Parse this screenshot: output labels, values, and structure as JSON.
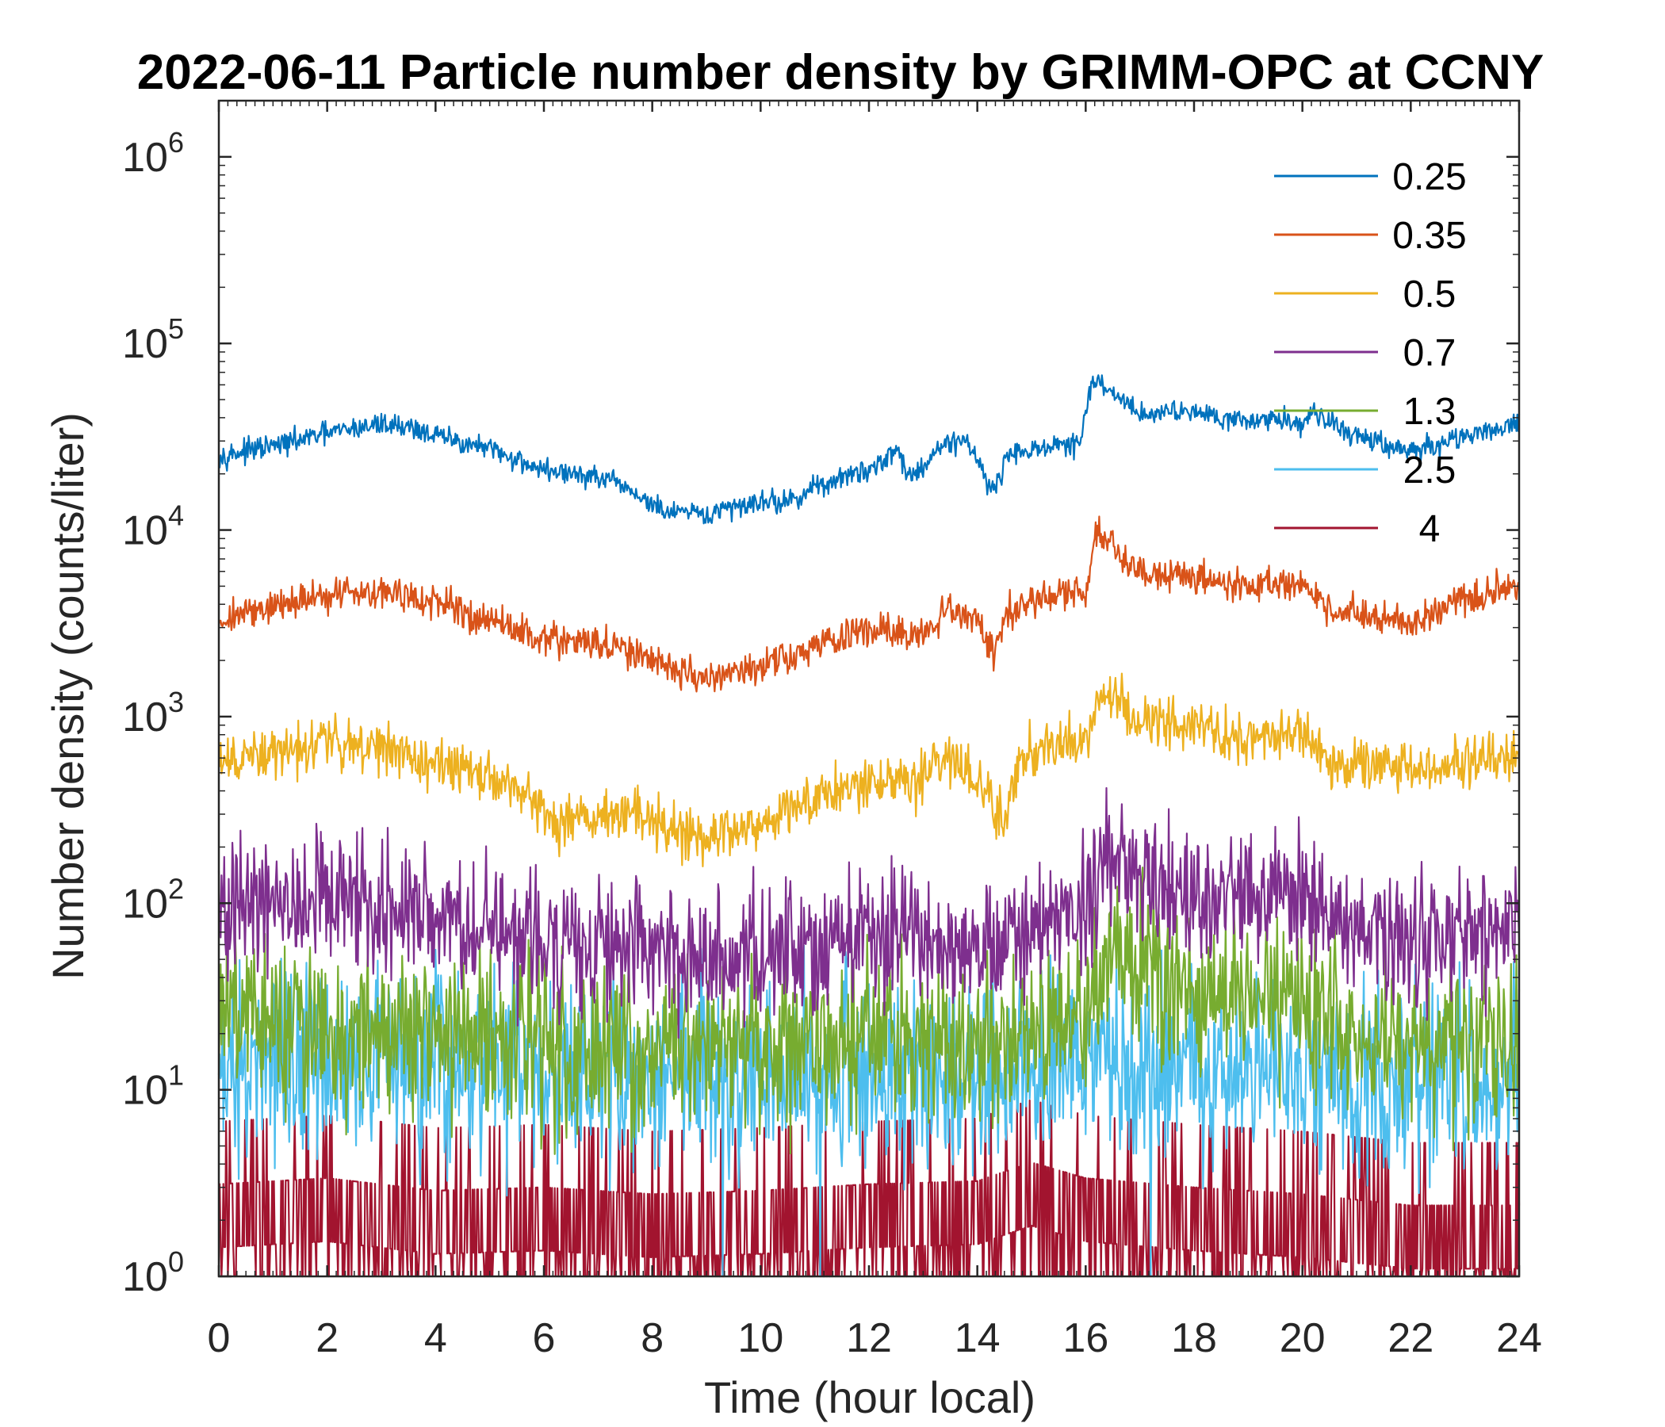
{
  "chart_data": {
    "type": "line",
    "title": "2022-06-11 Particle number density by GRIMM-OPC at CCNY",
    "xlabel": "Time (hour local)",
    "ylabel": "Number density (counts/liter)",
    "xlim": [
      0,
      24
    ],
    "ylim": [
      1,
      2000000
    ],
    "yscale": "log",
    "xticks": [
      0,
      2,
      4,
      6,
      8,
      10,
      12,
      14,
      16,
      18,
      20,
      22,
      24
    ],
    "yticks": [
      {
        "value": 1,
        "base": "10",
        "exp": "0"
      },
      {
        "value": 10,
        "base": "10",
        "exp": "1"
      },
      {
        "value": 100,
        "base": "10",
        "exp": "2"
      },
      {
        "value": 1000,
        "base": "10",
        "exp": "3"
      },
      {
        "value": 10000,
        "base": "10",
        "exp": "4"
      },
      {
        "value": 100000,
        "base": "10",
        "exp": "5"
      },
      {
        "value": 1000000,
        "base": "10",
        "exp": "6"
      }
    ],
    "legend_position": "top-right",
    "series": [
      {
        "name": "0.25",
        "color": "#0072BD",
        "noise": 0.03,
        "x": [
          0,
          1,
          2,
          3,
          3.5,
          4,
          5,
          6,
          7,
          7.5,
          8.2,
          9,
          10,
          10.5,
          11,
          12,
          12.5,
          12.8,
          13.3,
          13.8,
          14.3,
          14.6,
          15,
          15.9,
          16.1,
          16.5,
          17,
          18,
          19,
          19.5,
          20,
          20.2,
          20.5,
          21,
          21.5,
          22,
          23,
          24
        ],
        "y": [
          25000,
          28000,
          33000,
          37000,
          36000,
          32000,
          27000,
          21000,
          19000,
          17000,
          12500,
          12000,
          14500,
          14000,
          17000,
          21000,
          27000,
          19000,
          28000,
          31000,
          16000,
          26000,
          27000,
          29000,
          62000,
          55000,
          42000,
          44000,
          38000,
          40000,
          37000,
          44000,
          37000,
          32000,
          29000,
          26000,
          32000,
          37000
        ]
      },
      {
        "name": "0.35",
        "color": "#D95319",
        "noise": 0.045,
        "x": [
          0,
          1,
          2,
          3,
          4,
          5,
          6,
          7,
          8,
          9,
          10,
          11,
          12,
          13,
          13.5,
          14,
          14.3,
          14.6,
          15,
          16,
          16.2,
          16.5,
          17,
          18,
          19,
          20,
          20.5,
          21,
          22,
          23,
          24
        ],
        "y": [
          3300,
          3900,
          4500,
          4800,
          4000,
          3300,
          2600,
          2500,
          2000,
          1600,
          1800,
          2400,
          2900,
          2700,
          3700,
          3300,
          2200,
          3900,
          4200,
          4600,
          9500,
          8500,
          5800,
          5700,
          5000,
          5200,
          3800,
          3600,
          3100,
          4300,
          4900
        ]
      },
      {
        "name": "0.5",
        "color": "#EDB120",
        "noise": 0.07,
        "x": [
          0,
          1,
          2,
          3,
          4,
          5,
          6,
          6.3,
          7,
          8,
          8.5,
          9,
          10,
          11,
          12,
          13,
          13.4,
          14,
          14.4,
          14.8,
          15,
          16,
          16.3,
          16.6,
          17,
          18,
          19,
          20,
          20.5,
          21,
          22,
          23,
          24
        ],
        "y": [
          550,
          620,
          760,
          680,
          560,
          470,
          340,
          260,
          320,
          300,
          230,
          220,
          280,
          380,
          440,
          460,
          620,
          480,
          260,
          580,
          640,
          800,
          1300,
          1200,
          920,
          900,
          780,
          780,
          550,
          550,
          500,
          560,
          600
        ]
      },
      {
        "name": "0.7",
        "color": "#7E2F8E",
        "noise": 0.18,
        "x": [
          0,
          1,
          2,
          3,
          4,
          5,
          6,
          7,
          8,
          9,
          10,
          11,
          12,
          13,
          14,
          15,
          16,
          16.5,
          17,
          18,
          19,
          20,
          21,
          22,
          23,
          24
        ],
        "y": [
          80,
          95,
          105,
          90,
          82,
          78,
          60,
          65,
          55,
          48,
          52,
          62,
          70,
          64,
          58,
          80,
          100,
          190,
          130,
          120,
          105,
          110,
          72,
          62,
          72,
          78
        ]
      },
      {
        "name": "1.3",
        "color": "#77AC30",
        "noise": 0.22,
        "x": [
          0,
          2,
          4,
          6,
          8,
          10,
          12,
          14,
          15,
          16,
          16.5,
          17,
          18,
          20,
          21,
          22,
          24
        ],
        "y": [
          24,
          22,
          20,
          18,
          16,
          17,
          20,
          18,
          22,
          28,
          60,
          40,
          32,
          30,
          20,
          18,
          17
        ]
      },
      {
        "name": "2.5",
        "color": "#4DBEEE",
        "noise": 0.25,
        "x": [
          0,
          4,
          8,
          12,
          16,
          20,
          24
        ],
        "y": [
          14,
          14,
          12,
          12,
          13,
          12,
          11
        ]
      },
      {
        "name": "4",
        "color": "#A2142F",
        "noise": 0.45,
        "x": [
          0,
          2,
          4,
          6,
          8,
          10,
          12,
          14,
          15,
          16,
          18,
          20,
          22,
          24
        ],
        "y": [
          2.6,
          2.8,
          2.4,
          2.5,
          2.3,
          2.4,
          2.6,
          2.7,
          3.4,
          2.8,
          2.5,
          2.3,
          2.0,
          2.0
        ]
      }
    ]
  }
}
